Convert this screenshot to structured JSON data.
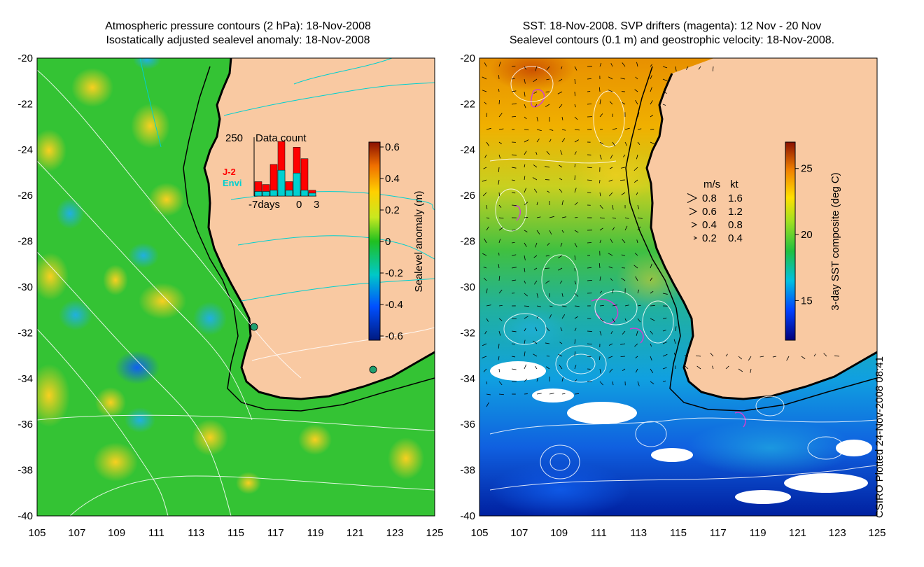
{
  "left_panel": {
    "title_line1": "Atmospheric pressure contours (2 hPa): 18-Nov-2008",
    "title_line2": "Isostatically adjusted sealevel anomaly: 18-Nov-2008",
    "colorbar": {
      "label": "Sealevel anomaly (m)",
      "ticks": [
        "0.6",
        "0.4",
        "0.2",
        "0",
        "-0.2",
        "-0.4",
        "-0.6"
      ],
      "range": [
        -0.6,
        0.6
      ]
    },
    "inset": {
      "title": "Data count",
      "y_max_label": "250",
      "x_labels": [
        "-7days",
        "0",
        "3"
      ],
      "legend": [
        {
          "name": "J-2",
          "color": "#ff0000"
        },
        {
          "name": "Envi",
          "color": "#00d0d0"
        }
      ]
    }
  },
  "right_panel": {
    "title_line1": "SST: 18-Nov-2008. SVP drifters (magenta): 12 Nov - 20 Nov",
    "title_line2": "Sealevel contours (0.1 m) and geostrophic velocity: 18-Nov-2008.",
    "colorbar": {
      "label": "3-day SST composite (deg C)",
      "ticks": [
        "25",
        "20",
        "15"
      ],
      "range": [
        12,
        27
      ]
    },
    "velocity_legend": {
      "header_ms": "m/s",
      "header_kt": "kt",
      "rows": [
        {
          "ms": "0.8",
          "kt": "1.6"
        },
        {
          "ms": "0.6",
          "kt": "1.2"
        },
        {
          "ms": "0.4",
          "kt": "0.8"
        },
        {
          "ms": "0.2",
          "kt": "0.4"
        }
      ]
    },
    "credit": "CSIRO Plotted 24-Nov-2008 08:41"
  },
  "axes": {
    "lat_ticks": [
      "-20",
      "-22",
      "-24",
      "-26",
      "-28",
      "-30",
      "-32",
      "-34",
      "-36",
      "-38",
      "-40"
    ],
    "lon_ticks": [
      "105",
      "107",
      "109",
      "111",
      "113",
      "115",
      "117",
      "119",
      "121",
      "123",
      "125"
    ],
    "lat_range": [
      -40,
      -20
    ],
    "lon_range": [
      105,
      125
    ]
  },
  "colors": {
    "land": "#f9c9a2",
    "coast": "#000000"
  }
}
